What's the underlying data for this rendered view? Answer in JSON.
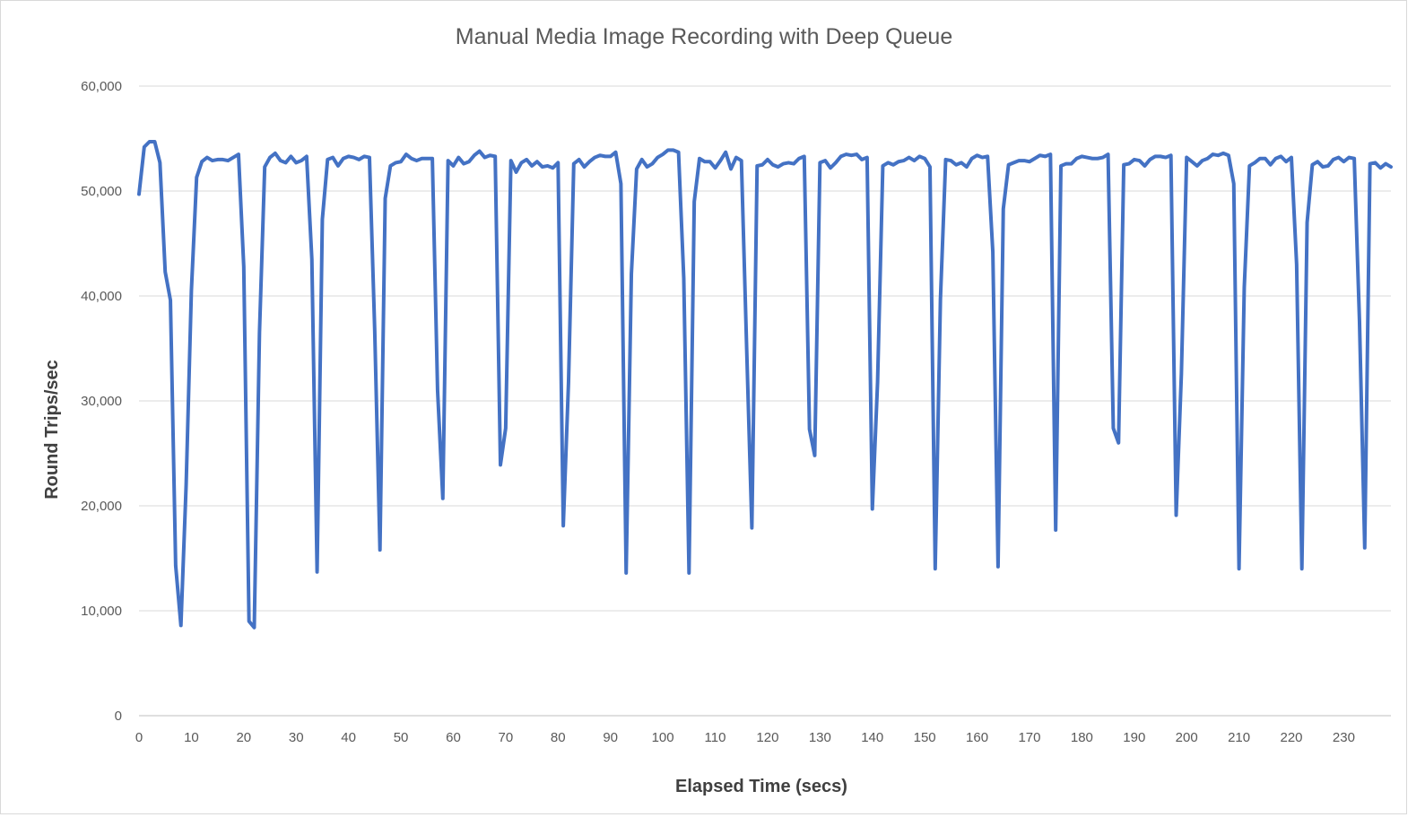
{
  "chart_data": {
    "type": "line",
    "title": "Manual Media Image Recording with Deep Queue",
    "xlabel": "Elapsed Time (secs)",
    "ylabel": "Round Trips/sec",
    "xlim": [
      0,
      239
    ],
    "ylim": [
      0,
      60000
    ],
    "x_ticks": [
      0,
      10,
      20,
      30,
      40,
      50,
      60,
      70,
      80,
      90,
      100,
      110,
      120,
      130,
      140,
      150,
      160,
      170,
      180,
      190,
      200,
      210,
      220,
      230
    ],
    "x_tick_labels": [
      "0",
      "10",
      "20",
      "30",
      "40",
      "50",
      "60",
      "70",
      "80",
      "90",
      "100",
      "110",
      "120",
      "130",
      "140",
      "150",
      "160",
      "170",
      "180",
      "190",
      "200",
      "210",
      "220",
      "230"
    ],
    "y_ticks": [
      0,
      10000,
      20000,
      30000,
      40000,
      50000,
      60000
    ],
    "y_tick_labels": [
      "0",
      "10,000",
      "20,000",
      "30,000",
      "40,000",
      "50,000",
      "60,000"
    ],
    "grid": true,
    "legend": false,
    "color": "#4472c4",
    "series": [
      {
        "x": [
          0,
          1,
          2,
          3,
          4,
          5,
          6,
          7,
          8,
          9,
          10,
          11,
          12,
          13,
          14,
          15,
          16,
          17,
          18,
          19,
          20,
          21,
          22,
          23,
          24,
          25,
          26,
          27,
          28,
          29,
          30,
          31,
          32,
          33,
          34,
          35,
          36,
          37,
          38,
          39,
          40,
          41,
          42,
          43,
          44,
          45,
          46,
          47,
          48,
          49,
          50,
          51,
          52,
          53,
          54,
          55,
          56,
          57,
          58,
          59,
          60,
          61,
          62,
          63,
          64,
          65,
          66,
          67,
          68,
          69,
          70,
          71,
          72,
          73,
          74,
          75,
          76,
          77,
          78,
          79,
          80,
          81,
          82,
          83,
          84,
          85,
          86,
          87,
          88,
          89,
          90,
          91,
          92,
          93,
          94,
          95,
          96,
          97,
          98,
          99,
          100,
          101,
          102,
          103,
          104,
          105,
          106,
          107,
          108,
          109,
          110,
          111,
          112,
          113,
          114,
          115,
          116,
          117,
          118,
          119,
          120,
          121,
          122,
          123,
          124,
          125,
          126,
          127,
          128,
          129,
          130,
          131,
          132,
          133,
          134,
          135,
          136,
          137,
          138,
          139,
          140,
          141,
          142,
          143,
          144,
          145,
          146,
          147,
          148,
          149,
          150,
          151,
          152,
          153,
          154,
          155,
          156,
          157,
          158,
          159,
          160,
          161,
          162,
          163,
          164,
          165,
          166,
          167,
          168,
          169,
          170,
          171,
          172,
          173,
          174,
          175,
          176,
          177,
          178,
          179,
          180,
          181,
          182,
          183,
          184,
          185,
          186,
          187,
          188,
          189,
          190,
          191,
          192,
          193,
          194,
          195,
          196,
          197,
          198,
          199,
          200,
          201,
          202,
          203,
          204,
          205,
          206,
          207,
          208,
          209,
          210,
          211,
          212,
          213,
          214,
          215,
          216,
          217,
          218,
          219,
          220,
          221,
          222,
          223,
          224,
          225,
          226,
          227,
          228,
          229,
          230,
          231,
          232,
          233,
          234,
          235,
          236,
          237,
          238,
          239
        ],
        "values": [
          49700,
          54200,
          54700,
          54700,
          52700,
          42300,
          39600,
          14300,
          8600,
          22000,
          40500,
          51300,
          52800,
          53200,
          52900,
          53000,
          53000,
          52900,
          53200,
          53500,
          42800,
          9000,
          8400,
          36500,
          52300,
          53200,
          53600,
          52900,
          52700,
          53300,
          52700,
          52900,
          53300,
          43500,
          13700,
          47300,
          53000,
          53200,
          52400,
          53100,
          53300,
          53200,
          53000,
          53300,
          53200,
          36700,
          15800,
          49300,
          52400,
          52700,
          52800,
          53500,
          53100,
          52900,
          53100,
          53100,
          53100,
          31000,
          20700,
          52900,
          52400,
          53200,
          52600,
          52800,
          53400,
          53800,
          53200,
          53400,
          53300,
          23900,
          27400,
          52900,
          51800,
          52700,
          53000,
          52400,
          52800,
          52300,
          52400,
          52200,
          52700,
          18100,
          31800,
          52600,
          53000,
          52300,
          52800,
          53200,
          53400,
          53300,
          53300,
          53700,
          50700,
          13600,
          42100,
          52100,
          53000,
          52300,
          52600,
          53200,
          53500,
          53900,
          53900,
          53700,
          41700,
          13600,
          49000,
          53100,
          52800,
          52800,
          52200,
          52900,
          53700,
          52100,
          53200,
          52900,
          35100,
          17900,
          52400,
          52500,
          53000,
          52500,
          52300,
          52600,
          52700,
          52600,
          53100,
          53300,
          27300,
          24800,
          52700,
          52900,
          52200,
          52700,
          53300,
          53500,
          53400,
          53500,
          53000,
          53200,
          19700,
          31800,
          52400,
          52700,
          52500,
          52800,
          52900,
          53200,
          52900,
          53300,
          53100,
          52300,
          14000,
          39700,
          53000,
          52900,
          52500,
          52700,
          52300,
          53100,
          53400,
          53200,
          53300,
          44200,
          14200,
          48300,
          52500,
          52700,
          52900,
          52900,
          52800,
          53100,
          53400,
          53300,
          53500,
          17700,
          52400,
          52600,
          52600,
          53100,
          53300,
          53200,
          53100,
          53100,
          53200,
          53500,
          27400,
          26000,
          52500,
          52600,
          53000,
          52900,
          52400,
          53000,
          53300,
          53300,
          53200,
          53400,
          19100,
          32600,
          53200,
          52800,
          52400,
          52900,
          53100,
          53500,
          53400,
          53600,
          53400,
          50700,
          14000,
          40800,
          52400,
          52700,
          53100,
          53100,
          52500,
          53100,
          53300,
          52800,
          53200,
          43000,
          14000,
          47000,
          52500,
          52800,
          52300,
          52400,
          53000,
          53200,
          52800,
          53200,
          53100,
          37600,
          16000,
          52600,
          52700,
          52200,
          52600,
          52300
        ]
      }
    ]
  }
}
